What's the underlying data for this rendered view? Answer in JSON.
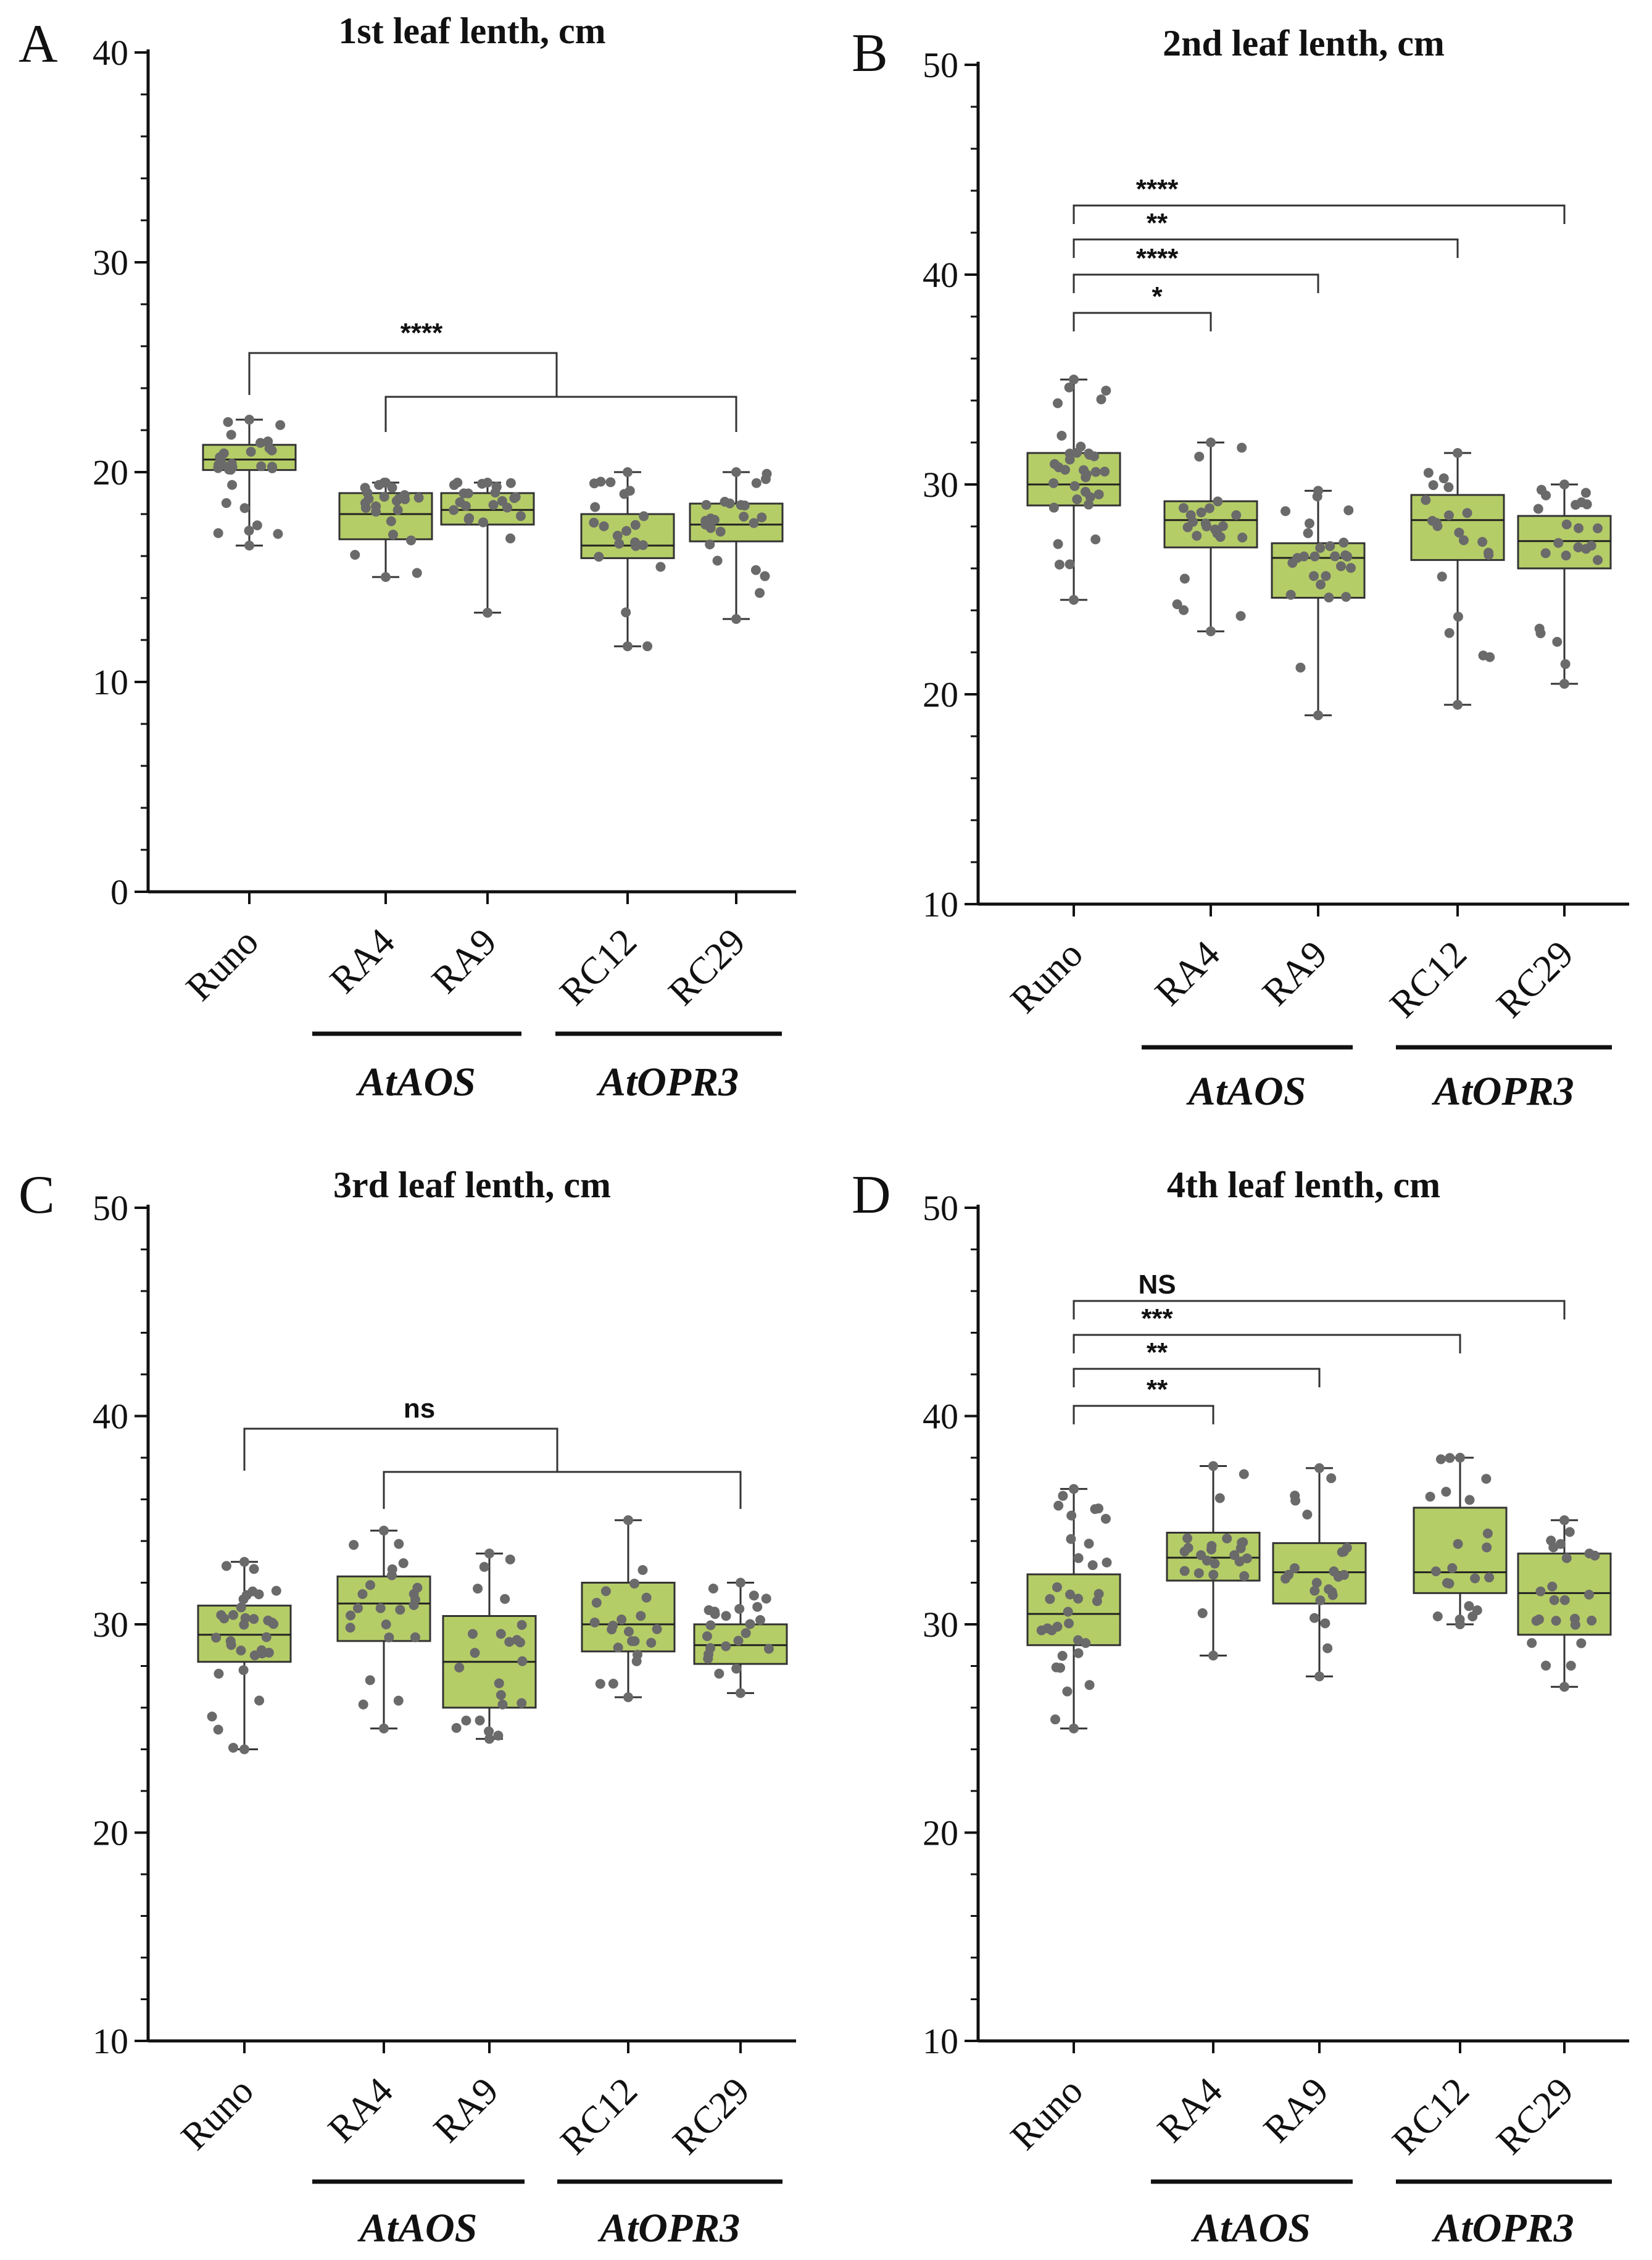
{
  "chart_data": [
    {
      "type": "box",
      "panel": "A",
      "title": "1st leaf lenth, cm",
      "ylim": [
        0,
        40
      ],
      "yticks": [
        0,
        10,
        20,
        30,
        40
      ],
      "categories": [
        "Runo",
        "RA4",
        "RA9",
        "RC12",
        "RC29"
      ],
      "groups": [
        {
          "label": "AtAOS",
          "members": [
            "RA4",
            "RA9"
          ]
        },
        {
          "label": "AtOPR3",
          "members": [
            "RC12",
            "RC29"
          ]
        }
      ],
      "series": [
        {
          "name": "Runo",
          "min": 16.5,
          "q1": 20.1,
          "median": 20.6,
          "q3": 21.3,
          "max": 22.5,
          "n": 30
        },
        {
          "name": "RA4",
          "min": 15.0,
          "q1": 16.8,
          "median": 18.0,
          "q3": 19.0,
          "max": 19.5,
          "n": 24
        },
        {
          "name": "RA9",
          "min": 13.3,
          "q1": 17.5,
          "median": 18.2,
          "q3": 19.0,
          "max": 19.5,
          "n": 24
        },
        {
          "name": "RC12",
          "min": 11.7,
          "q1": 15.9,
          "median": 16.5,
          "q3": 18.0,
          "max": 20.0,
          "n": 22
        },
        {
          "name": "RC29",
          "min": 13.0,
          "q1": 16.7,
          "median": 17.5,
          "q3": 18.5,
          "max": 20.0,
          "n": 24
        }
      ],
      "annotations": [
        {
          "type": "group-bracket",
          "from": "Runo",
          "to": [
            "RA4",
            "RC29"
          ],
          "label": "****"
        }
      ]
    },
    {
      "type": "box",
      "panel": "B",
      "title": "2nd leaf lenth, cm",
      "ylim": [
        10,
        50
      ],
      "yticks": [
        10,
        20,
        30,
        40,
        50
      ],
      "categories": [
        "Runo",
        "RA4",
        "RA9",
        "RC12",
        "RC29"
      ],
      "groups": [
        {
          "label": "AtAOS",
          "members": [
            "RA4",
            "RA9"
          ]
        },
        {
          "label": "AtOPR3",
          "members": [
            "RC12",
            "RC29"
          ]
        }
      ],
      "series": [
        {
          "name": "Runo",
          "min": 24.5,
          "q1": 29.0,
          "median": 30.0,
          "q3": 31.5,
          "max": 35.0,
          "n": 34
        },
        {
          "name": "RA4",
          "min": 23.0,
          "q1": 27.0,
          "median": 28.3,
          "q3": 29.2,
          "max": 32.0,
          "n": 24
        },
        {
          "name": "RA9",
          "min": 19.0,
          "q1": 24.6,
          "median": 26.5,
          "q3": 27.2,
          "max": 29.7,
          "n": 26
        },
        {
          "name": "RC12",
          "min": 19.5,
          "q1": 26.4,
          "median": 28.3,
          "q3": 29.5,
          "max": 31.5,
          "n": 22
        },
        {
          "name": "RC29",
          "min": 20.5,
          "q1": 26.0,
          "median": 27.3,
          "q3": 28.5,
          "max": 30.0,
          "n": 24
        }
      ],
      "annotations": [
        {
          "type": "pair-bracket",
          "from": "Runo",
          "to": "RA4",
          "label": "*"
        },
        {
          "type": "pair-bracket",
          "from": "Runo",
          "to": "RA9",
          "label": "****"
        },
        {
          "type": "pair-bracket",
          "from": "Runo",
          "to": "RC12",
          "label": "**"
        },
        {
          "type": "pair-bracket",
          "from": "Runo",
          "to": "RC29",
          "label": "****"
        }
      ]
    },
    {
      "type": "box",
      "panel": "C",
      "title": "3rd leaf lenth, cm",
      "ylim": [
        10,
        50
      ],
      "yticks": [
        10,
        20,
        30,
        40,
        50
      ],
      "categories": [
        "Runo",
        "RA4",
        "RA9",
        "RC12",
        "RC29"
      ],
      "groups": [
        {
          "label": "AtAOS",
          "members": [
            "RA4",
            "RA9"
          ]
        },
        {
          "label": "AtOPR3",
          "members": [
            "RC12",
            "RC29"
          ]
        }
      ],
      "series": [
        {
          "name": "Runo",
          "min": 24.0,
          "q1": 28.2,
          "median": 29.5,
          "q3": 30.9,
          "max": 33.0,
          "n": 34
        },
        {
          "name": "RA4",
          "min": 25.0,
          "q1": 29.2,
          "median": 31.0,
          "q3": 32.3,
          "max": 34.5,
          "n": 24
        },
        {
          "name": "RA9",
          "min": 24.5,
          "q1": 26.0,
          "median": 28.2,
          "q3": 30.4,
          "max": 33.4,
          "n": 24
        },
        {
          "name": "RC12",
          "min": 26.5,
          "q1": 28.7,
          "median": 30.0,
          "q3": 32.0,
          "max": 35.0,
          "n": 22
        },
        {
          "name": "RC29",
          "min": 26.7,
          "q1": 28.1,
          "median": 29.0,
          "q3": 30.0,
          "max": 32.0,
          "n": 24
        }
      ],
      "annotations": [
        {
          "type": "group-bracket",
          "from": "Runo",
          "to": [
            "RA4",
            "RC29"
          ],
          "label": "ns"
        }
      ]
    },
    {
      "type": "box",
      "panel": "D",
      "title": "4th leaf lenth, cm",
      "ylim": [
        10,
        50
      ],
      "yticks": [
        10,
        20,
        30,
        40,
        50
      ],
      "categories": [
        "Runo",
        "RA4",
        "RA9",
        "RC12",
        "RC29"
      ],
      "groups": [
        {
          "label": "AtAOS",
          "members": [
            "RA4",
            "RA9"
          ]
        },
        {
          "label": "AtOPR3",
          "members": [
            "RC12",
            "RC29"
          ]
        }
      ],
      "series": [
        {
          "name": "Runo",
          "min": 25.0,
          "q1": 29.0,
          "median": 30.5,
          "q3": 32.4,
          "max": 36.5,
          "n": 34
        },
        {
          "name": "RA4",
          "min": 28.5,
          "q1": 32.1,
          "median": 33.2,
          "q3": 34.4,
          "max": 37.6,
          "n": 24
        },
        {
          "name": "RA9",
          "min": 27.5,
          "q1": 31.0,
          "median": 32.5,
          "q3": 33.9,
          "max": 37.5,
          "n": 24
        },
        {
          "name": "RC12",
          "min": 30.0,
          "q1": 31.5,
          "median": 32.5,
          "q3": 35.6,
          "max": 38.0,
          "n": 22
        },
        {
          "name": "RC29",
          "min": 27.0,
          "q1": 29.5,
          "median": 31.5,
          "q3": 33.4,
          "max": 35.0,
          "n": 24
        }
      ],
      "annotations": [
        {
          "type": "pair-bracket",
          "from": "Runo",
          "to": "RA4",
          "label": "**"
        },
        {
          "type": "pair-bracket",
          "from": "Runo",
          "to": "RA9",
          "label": "**"
        },
        {
          "type": "pair-bracket",
          "from": "Runo",
          "to": "RC12",
          "label": "***"
        },
        {
          "type": "pair-bracket",
          "from": "Runo",
          "to": "RC29",
          "label": "NS"
        }
      ]
    }
  ]
}
